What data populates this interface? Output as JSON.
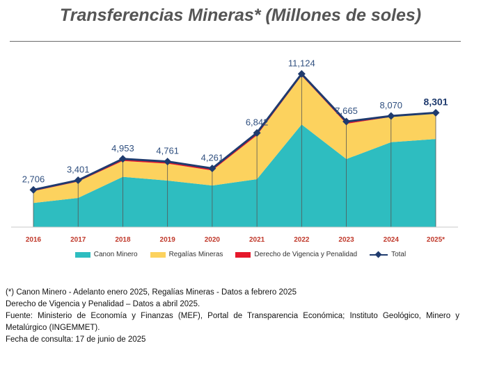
{
  "title": "Transferencias Mineras* (Millones de soles)",
  "chart_data": {
    "type": "area",
    "stacked": true,
    "categories": [
      "2016",
      "2017",
      "2018",
      "2019",
      "2020",
      "2021",
      "2022",
      "2023",
      "2024",
      "2025*"
    ],
    "series": [
      {
        "name": "Canon Minero",
        "color": "#2ebdc0",
        "values": [
          1750,
          2120,
          3650,
          3380,
          3020,
          3480,
          7450,
          4940,
          6170,
          6400
        ]
      },
      {
        "name": "Regalías Mineras",
        "color": "#fcd25e",
        "values": [
          856,
          1181,
          1153,
          1231,
          1091,
          3182,
          3544,
          2565,
          1830,
          1856
        ]
      },
      {
        "name": "Derecho de Vigencia y Penalidad",
        "color": "#e5182b",
        "values": [
          100,
          100,
          150,
          150,
          150,
          180,
          130,
          160,
          70,
          45
        ]
      }
    ],
    "total": {
      "name": "Total",
      "color": "#1f3b6e",
      "values": [
        2706,
        3401,
        4953,
        4761,
        4261,
        6842,
        11124,
        7665,
        8070,
        8301
      ]
    },
    "total_labels": [
      "2,706",
      "3,401",
      "4,953",
      "4,761",
      "4,261",
      "6,842",
      "11,124",
      "7,665",
      "8,070",
      "8,301"
    ],
    "ylim": [
      0,
      11700
    ],
    "grid": false,
    "legend_position": "bottom"
  },
  "notes": [
    "(*) Canon Minero - Adelanto enero 2025, Regalías Mineras - Datos a febrero 2025",
    "Derecho de Vigencia y Penalidad – Datos a abril 2025.",
    "Fuente: Ministerio de Economía y Finanzas (MEF), Portal de Transparencia Económica; Instituto Geológico, Minero y Metalúrgico (INGEMMET).",
    "Fecha de consulta: 17 de junio de 2025"
  ]
}
